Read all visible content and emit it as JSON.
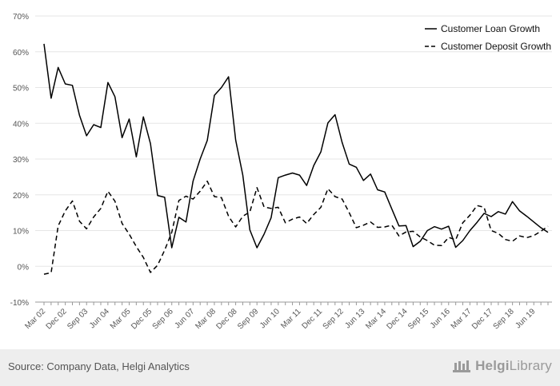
{
  "chart_data": {
    "type": "line",
    "title": "",
    "xlabel": "",
    "ylabel": "",
    "ylim": [
      -10,
      70
    ],
    "yticks": [
      -10,
      0,
      10,
      20,
      30,
      40,
      50,
      60,
      70
    ],
    "ytick_labels": [
      "-10%",
      "0%",
      "10%",
      "20%",
      "30%",
      "40%",
      "50%",
      "60%",
      "70%"
    ],
    "x_start_label": "Mar 02",
    "x_tick_labels": [
      "Mar 02",
      "Dec 02",
      "Sep 03",
      "Jun 04",
      "Mar 05",
      "Dec 05",
      "Sep 06",
      "Jun 07",
      "Mar 08",
      "Dec 08",
      "Sep 09",
      "Jun 10",
      "Mar 11",
      "Dec 11",
      "Sep 12",
      "Jun 13",
      "Mar 14",
      "Dec 14",
      "Sep 15",
      "Jun 16",
      "Mar 17",
      "Dec 17",
      "Sep 18",
      "Jun 19"
    ],
    "grid": true,
    "legend_position": "top-right",
    "series": [
      {
        "name": "Customer Loan Growth",
        "style": "solid",
        "color": "#000000",
        "values": [
          62.2,
          47.0,
          55.6,
          51.0,
          50.6,
          42.2,
          36.5,
          39.6,
          38.8,
          51.4,
          47.4,
          36.0,
          41.2,
          30.6,
          41.8,
          34.3,
          19.8,
          19.3,
          5.2,
          13.7,
          12.4,
          23.8,
          30.0,
          35.2,
          47.8,
          50.0,
          53.0,
          35.3,
          25.5,
          10.2,
          5.2,
          9.0,
          13.6,
          24.8,
          25.5,
          26.1,
          25.5,
          22.6,
          28.2,
          32.0,
          40.1,
          42.4,
          34.6,
          28.6,
          27.7,
          24.0,
          25.8,
          21.4,
          20.8,
          16.0,
          11.3,
          11.4,
          5.5,
          7.0,
          10.0,
          11.1,
          10.4,
          11.2,
          5.3,
          7.2,
          10.0,
          12.3,
          14.8,
          13.9,
          15.3,
          14.6,
          18.1,
          15.5,
          14.0,
          12.4,
          10.8,
          9.5
        ]
      },
      {
        "name": "Customer Deposit Growth",
        "style": "dashed",
        "color": "#000000",
        "values": [
          -2.2,
          -1.8,
          11.3,
          15.5,
          18.3,
          12.6,
          10.5,
          13.8,
          16.2,
          21.0,
          18.2,
          12.0,
          9.0,
          5.5,
          2.5,
          -1.7,
          0.3,
          4.5,
          9.5,
          18.4,
          19.6,
          18.8,
          21.0,
          23.8,
          19.5,
          19.2,
          14.0,
          11.0,
          14.0,
          15.2,
          22.0,
          16.6,
          16.2,
          16.5,
          12.2,
          13.2,
          13.8,
          12.0,
          14.5,
          16.5,
          21.7,
          19.5,
          18.8,
          15.0,
          10.8,
          11.5,
          12.4,
          10.9,
          11.0,
          11.5,
          8.5,
          9.6,
          9.8,
          8.2,
          7.2,
          5.9,
          5.8,
          8.1,
          7.4,
          12.2,
          14.3,
          17.0,
          16.5,
          10.0,
          9.2,
          7.5,
          7.0,
          8.5,
          8.0,
          8.6,
          9.8,
          11.2
        ]
      }
    ]
  },
  "footer": {
    "source_text": "Source: Company Data, Helgi Analytics",
    "brand_prefix": "Helgi",
    "brand_suffix": "Library"
  }
}
